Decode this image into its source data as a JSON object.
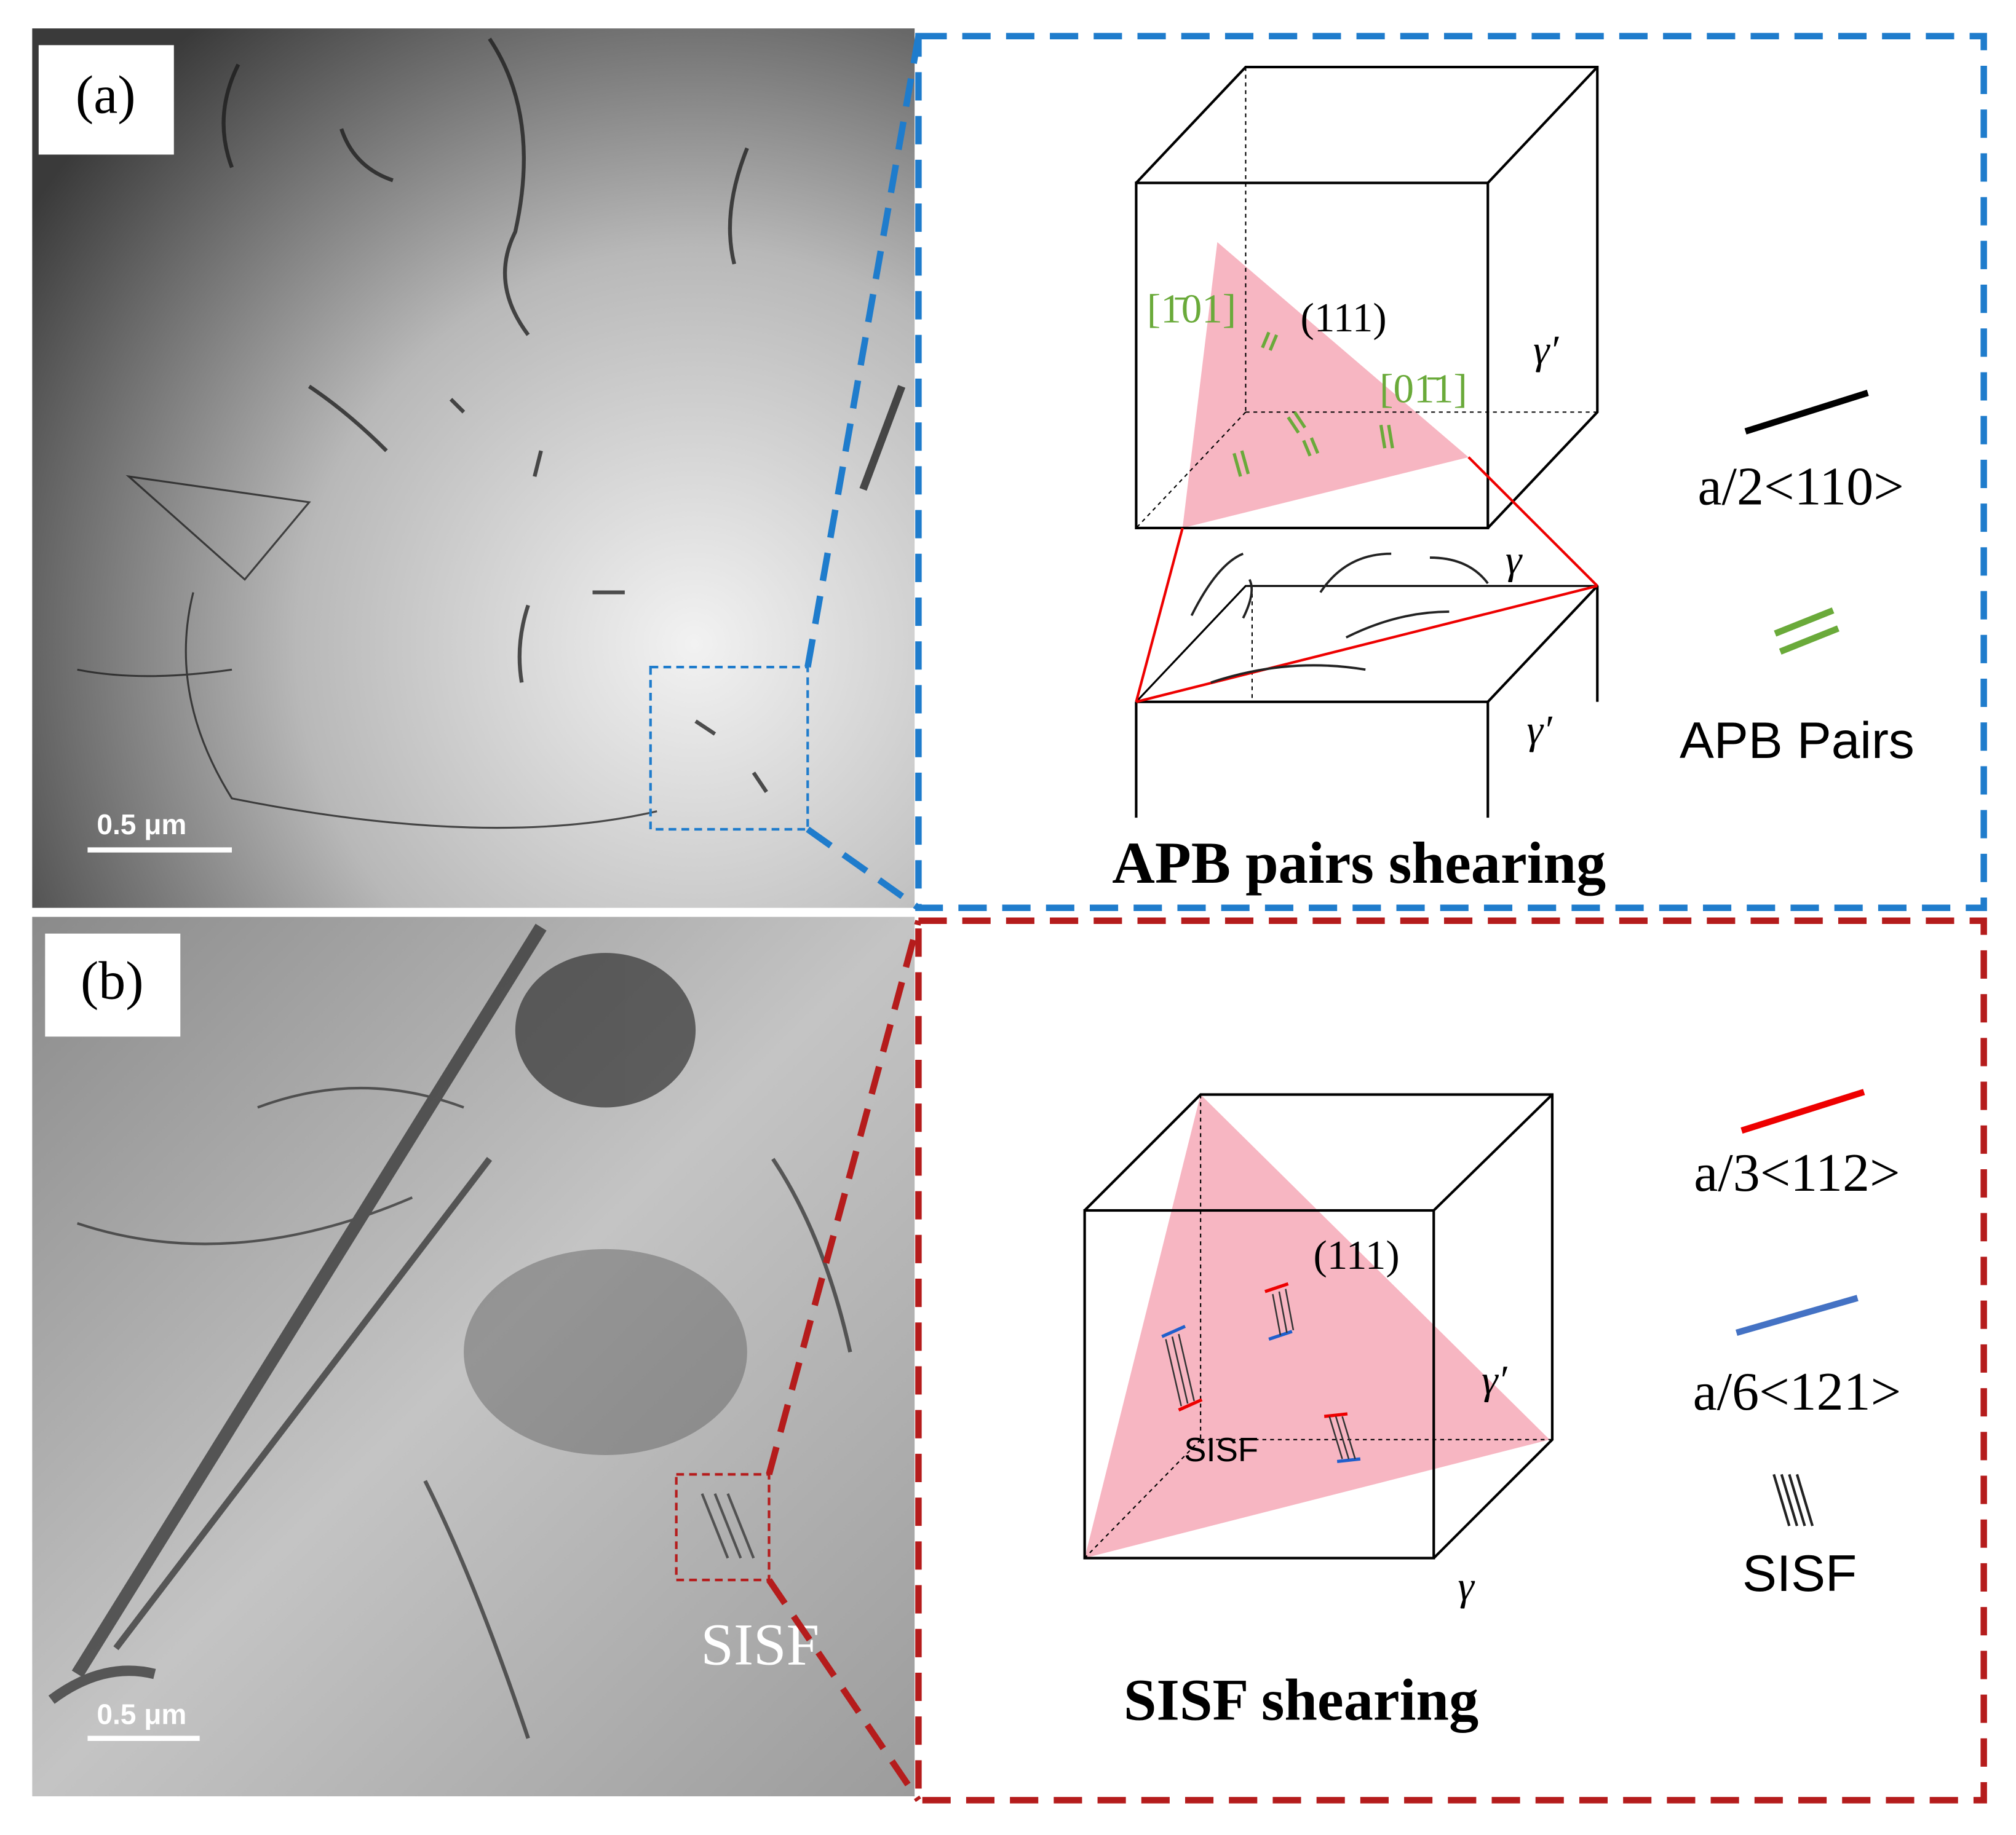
{
  "panels": [
    {
      "label": "(a)",
      "scale_bar": "0.5 μm",
      "schematic": {
        "plane": "(111)",
        "directions": [
          "[1̄01]",
          "[01̄1]"
        ],
        "phases": [
          "γ′",
          "γ",
          "γ′"
        ],
        "legend": [
          "a/2<110>",
          "APB Pairs"
        ],
        "caption": "APB pairs shearing"
      }
    },
    {
      "label": "(b)",
      "scale_bar": "0.5 μm",
      "image_annotation": "SISF",
      "schematic": {
        "plane": "(111)",
        "fault": "SISF",
        "phases": [
          "γ′",
          "γ"
        ],
        "legend": [
          "a/3<112>",
          "a/6<121>",
          "SISF"
        ],
        "caption": "SISF shearing"
      }
    }
  ]
}
